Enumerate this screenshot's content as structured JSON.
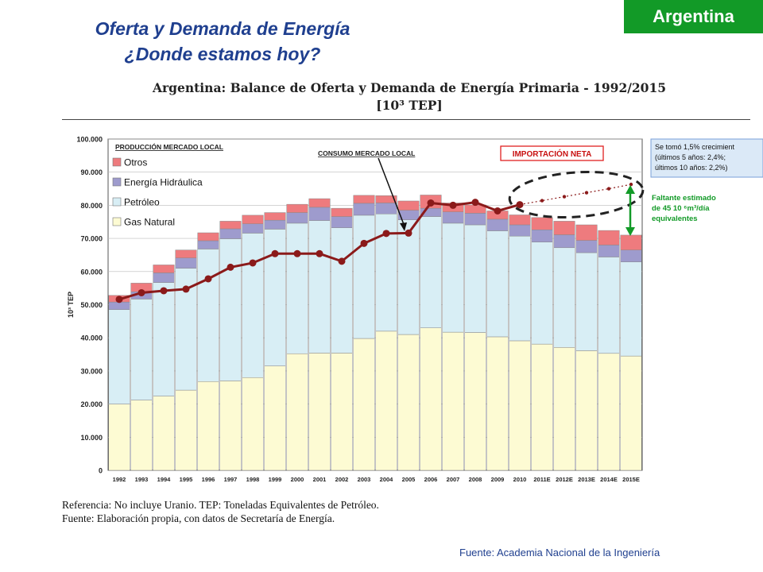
{
  "slide": {
    "title_line1": "Oferta y Demanda de Energía",
    "title_line2": "¿Donde estamos hoy?",
    "country": "Argentina",
    "source_credit": "Fuente: Academia Nacional de la Ingeniería"
  },
  "chart_data": {
    "type": "bar",
    "stacked": true,
    "title": "Argentina: Balance de Oferta y Demanda de Energía Primaria - 1992/2015",
    "subtitle": "[10³ TEP]",
    "ylabel": "10³ TEP",
    "ylim": [
      0,
      100000
    ],
    "yticks": [
      "0",
      "10.000",
      "20.000",
      "30.000",
      "40.000",
      "50.000",
      "60.000",
      "70.000",
      "80.000",
      "90.000",
      "100.000"
    ],
    "categories": [
      "1992",
      "1993",
      "1994",
      "1995",
      "1996",
      "1997",
      "1998",
      "1999",
      "2000",
      "2001",
      "2002",
      "2003",
      "2004",
      "2005",
      "2006",
      "2007",
      "2008",
      "2009",
      "2010",
      "2011E",
      "2012E",
      "2013E",
      "2014E",
      "2015E"
    ],
    "legend_title": "PRODUCCIÓN MERCADO LOCAL",
    "series": [
      {
        "name": "Gas Natural",
        "color": "#fdfbd3",
        "values": [
          20000,
          21200,
          22400,
          24200,
          26800,
          27000,
          28000,
          31500,
          35200,
          35400,
          35400,
          39800,
          42000,
          41000,
          43000,
          41700,
          41600,
          40300,
          39100,
          38100,
          37100,
          36100,
          35300,
          34500
        ]
      },
      {
        "name": "Petróleo",
        "color": "#d8eef5",
        "values": [
          28500,
          30500,
          34300,
          36800,
          40000,
          42900,
          43600,
          41300,
          39400,
          40000,
          37800,
          37200,
          35400,
          34600,
          33600,
          32900,
          32500,
          32000,
          31600,
          30800,
          30100,
          29600,
          29100,
          28400
        ]
      },
      {
        "name": "Energía Hidráulica",
        "color": "#9e9bcd",
        "values": [
          2300,
          2200,
          2900,
          3100,
          2500,
          3000,
          2800,
          2700,
          3200,
          4000,
          3400,
          3600,
          3300,
          2900,
          2500,
          3400,
          3500,
          3500,
          3400,
          3700,
          3900,
          3700,
          3600,
          3600
        ]
      },
      {
        "name": "Otros",
        "color": "#ee7b7e",
        "values": [
          2000,
          2600,
          2400,
          2400,
          2400,
          2300,
          2600,
          2300,
          2500,
          2600,
          2500,
          2400,
          2200,
          2800,
          4000,
          2700,
          2500,
          2500,
          3000,
          3700,
          4100,
          4700,
          4400,
          4500
        ]
      }
    ],
    "consumption": {
      "label": "CONSUMO MERCADO LOCAL",
      "color": "#8b1a1a",
      "values": [
        51600,
        53600,
        54200,
        54700,
        57800,
        61300,
        62600,
        65400,
        65400,
        65400,
        63100,
        68500,
        71500,
        71600,
        80700,
        80000,
        80900,
        78300,
        80200,
        null,
        null,
        null,
        null,
        null
      ],
      "projection": [
        null,
        null,
        null,
        null,
        null,
        null,
        null,
        null,
        null,
        null,
        null,
        null,
        null,
        null,
        null,
        null,
        null,
        null,
        80200,
        81400,
        82600,
        83800,
        85000,
        86300
      ]
    },
    "annotations": {
      "importacion": "IMPORTACIÓN NETA",
      "note_box": [
        "Se tomó 1,5% crecimient",
        "(últimos 5 años: 2,4%;",
        "últimos 10 años: 2,2%)"
      ],
      "faltante": [
        "Faltante estimado",
        "de 45 10 ⁶m³/día",
        "equivalentes"
      ]
    },
    "grid": true,
    "legend_position": "top-left"
  },
  "notes": {
    "reference": "Referencia: No incluye Uranio. TEP: Toneladas Equivalentes de Petróleo.",
    "fuente": "Fuente: Elaboración propia, con datos de Secretaría de Energía."
  }
}
